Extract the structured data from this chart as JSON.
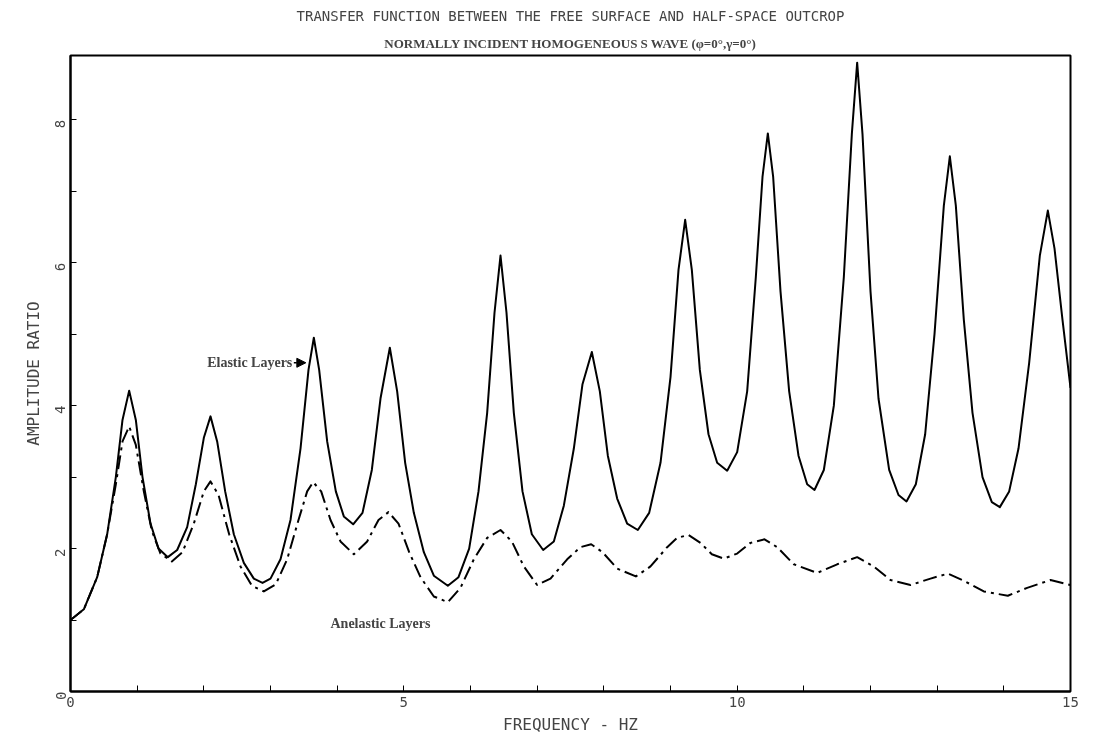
{
  "chart_data": {
    "type": "line",
    "title": "TRANSFER FUNCTION BETWEEN THE FREE SURFACE AND HALF-SPACE OUTCROP",
    "subtitle": "NORMALLY INCIDENT HOMOGENEOUS S WAVE (φ=0°,γ=0°)",
    "xlabel": "FREQUENCY - HZ",
    "ylabel": "AMPLITUDE RATIO",
    "xlim": [
      0,
      15
    ],
    "ylim": [
      0,
      8.9
    ],
    "xticks": [
      0,
      {
        "value": 1,
        "label": null
      },
      {
        "value": 2,
        "label": null
      },
      {
        "value": 3,
        "label": null
      },
      {
        "value": 4,
        "label": null
      },
      5,
      {
        "value": 6,
        "label": null
      },
      {
        "value": 7,
        "label": null
      },
      {
        "value": 8,
        "label": null
      },
      {
        "value": 9,
        "label": null
      },
      10,
      {
        "value": 11,
        "label": null
      },
      {
        "value": 12,
        "label": null
      },
      {
        "value": 13,
        "label": null
      },
      {
        "value": 14,
        "label": null
      },
      15
    ],
    "yticks": [
      0,
      {
        "value": 1,
        "label": null
      },
      2,
      {
        "value": 3,
        "label": null
      },
      4,
      {
        "value": 5,
        "label": null
      },
      6,
      {
        "value": 7,
        "label": null
      },
      8
    ],
    "grid": false,
    "series": [
      {
        "name": "Elastic Layers",
        "color": "#000000",
        "line_style": "solid",
        "x": [
          0,
          0.2,
          0.4,
          0.55,
          0.68,
          0.78,
          0.88,
          0.98,
          1.08,
          1.2,
          1.32,
          1.46,
          1.6,
          1.75,
          1.88,
          2.0,
          2.1,
          2.2,
          2.32,
          2.45,
          2.6,
          2.75,
          2.88,
          3.0,
          3.15,
          3.3,
          3.45,
          3.57,
          3.65,
          3.73,
          3.85,
          3.98,
          4.1,
          4.24,
          4.38,
          4.52,
          4.65,
          4.79,
          4.9,
          5.02,
          5.15,
          5.3,
          5.45,
          5.66,
          5.82,
          5.98,
          6.12,
          6.25,
          6.36,
          6.45,
          6.54,
          6.65,
          6.78,
          6.92,
          7.09,
          7.25,
          7.4,
          7.55,
          7.68,
          7.82,
          7.94,
          8.06,
          8.2,
          8.35,
          8.51,
          8.68,
          8.85,
          9.0,
          9.12,
          9.22,
          9.32,
          9.44,
          9.57,
          9.7,
          9.85,
          10.0,
          10.15,
          10.28,
          10.38,
          10.46,
          10.54,
          10.65,
          10.78,
          10.92,
          11.05,
          11.16,
          11.3,
          11.45,
          11.6,
          11.72,
          11.8,
          11.88,
          12.0,
          12.12,
          12.28,
          12.42,
          12.54,
          12.68,
          12.82,
          12.96,
          13.1,
          13.19,
          13.28,
          13.4,
          13.53,
          13.68,
          13.82,
          13.94,
          14.08,
          14.22,
          14.38,
          14.54,
          14.66,
          14.76,
          14.88,
          15
        ],
        "values": [
          1.0,
          1.15,
          1.6,
          2.2,
          3.0,
          3.8,
          4.21,
          3.8,
          3.0,
          2.35,
          2.0,
          1.88,
          1.98,
          2.3,
          2.9,
          3.55,
          3.85,
          3.5,
          2.8,
          2.2,
          1.8,
          1.58,
          1.52,
          1.58,
          1.85,
          2.4,
          3.4,
          4.5,
          4.95,
          4.5,
          3.5,
          2.8,
          2.45,
          2.34,
          2.5,
          3.1,
          4.1,
          4.81,
          4.2,
          3.2,
          2.5,
          1.95,
          1.62,
          1.48,
          1.6,
          2.0,
          2.8,
          3.9,
          5.3,
          6.1,
          5.3,
          3.9,
          2.8,
          2.2,
          1.98,
          2.1,
          2.6,
          3.4,
          4.3,
          4.75,
          4.2,
          3.3,
          2.7,
          2.35,
          2.26,
          2.5,
          3.2,
          4.4,
          5.9,
          6.6,
          5.9,
          4.5,
          3.6,
          3.2,
          3.09,
          3.35,
          4.2,
          5.8,
          7.2,
          7.81,
          7.2,
          5.6,
          4.2,
          3.3,
          2.9,
          2.82,
          3.1,
          4.0,
          5.8,
          7.8,
          8.8,
          7.8,
          5.6,
          4.1,
          3.1,
          2.75,
          2.66,
          2.9,
          3.6,
          5.0,
          6.8,
          7.49,
          6.8,
          5.2,
          3.9,
          3.0,
          2.65,
          2.58,
          2.8,
          3.4,
          4.6,
          6.1,
          6.73,
          6.2,
          5.2,
          4.25
        ]
      },
      {
        "name": "Anelastic Layers",
        "color": "#000000",
        "line_style": "dashed",
        "x": [
          0,
          0.2,
          0.4,
          0.55,
          0.68,
          0.78,
          0.88,
          0.98,
          1.1,
          1.22,
          1.35,
          1.52,
          1.68,
          1.85,
          2.0,
          2.1,
          2.22,
          2.38,
          2.55,
          2.72,
          2.9,
          3.08,
          3.25,
          3.42,
          3.55,
          3.64,
          3.76,
          3.9,
          4.05,
          4.25,
          4.45,
          4.62,
          4.77,
          4.92,
          5.08,
          5.25,
          5.45,
          5.66,
          5.85,
          6.05,
          6.25,
          6.45,
          6.62,
          6.8,
          7.0,
          7.2,
          7.45,
          7.65,
          7.81,
          7.98,
          8.2,
          8.48,
          8.7,
          8.95,
          9.1,
          9.27,
          9.45,
          9.62,
          9.8,
          10.0,
          10.2,
          10.41,
          10.6,
          10.85,
          11.2,
          11.5,
          11.8,
          12.05,
          12.3,
          12.6,
          12.9,
          13.16,
          13.4,
          13.7,
          14.06,
          14.35,
          14.7,
          15
        ],
        "values": [
          1.0,
          1.15,
          1.6,
          2.2,
          2.9,
          3.5,
          3.71,
          3.45,
          2.8,
          2.25,
          1.93,
          1.82,
          1.95,
          2.35,
          2.8,
          2.94,
          2.75,
          2.2,
          1.75,
          1.48,
          1.4,
          1.5,
          1.85,
          2.4,
          2.8,
          2.93,
          2.8,
          2.4,
          2.1,
          1.92,
          2.1,
          2.4,
          2.51,
          2.35,
          1.95,
          1.6,
          1.33,
          1.25,
          1.45,
          1.85,
          2.15,
          2.26,
          2.1,
          1.75,
          1.49,
          1.58,
          1.85,
          2.02,
          2.06,
          1.95,
          1.72,
          1.61,
          1.75,
          2.02,
          2.15,
          2.19,
          2.08,
          1.92,
          1.86,
          1.93,
          2.08,
          2.13,
          2.02,
          1.78,
          1.66,
          1.78,
          1.88,
          1.75,
          1.56,
          1.49,
          1.58,
          1.65,
          1.55,
          1.4,
          1.34,
          1.45,
          1.56,
          1.49
        ]
      }
    ]
  }
}
